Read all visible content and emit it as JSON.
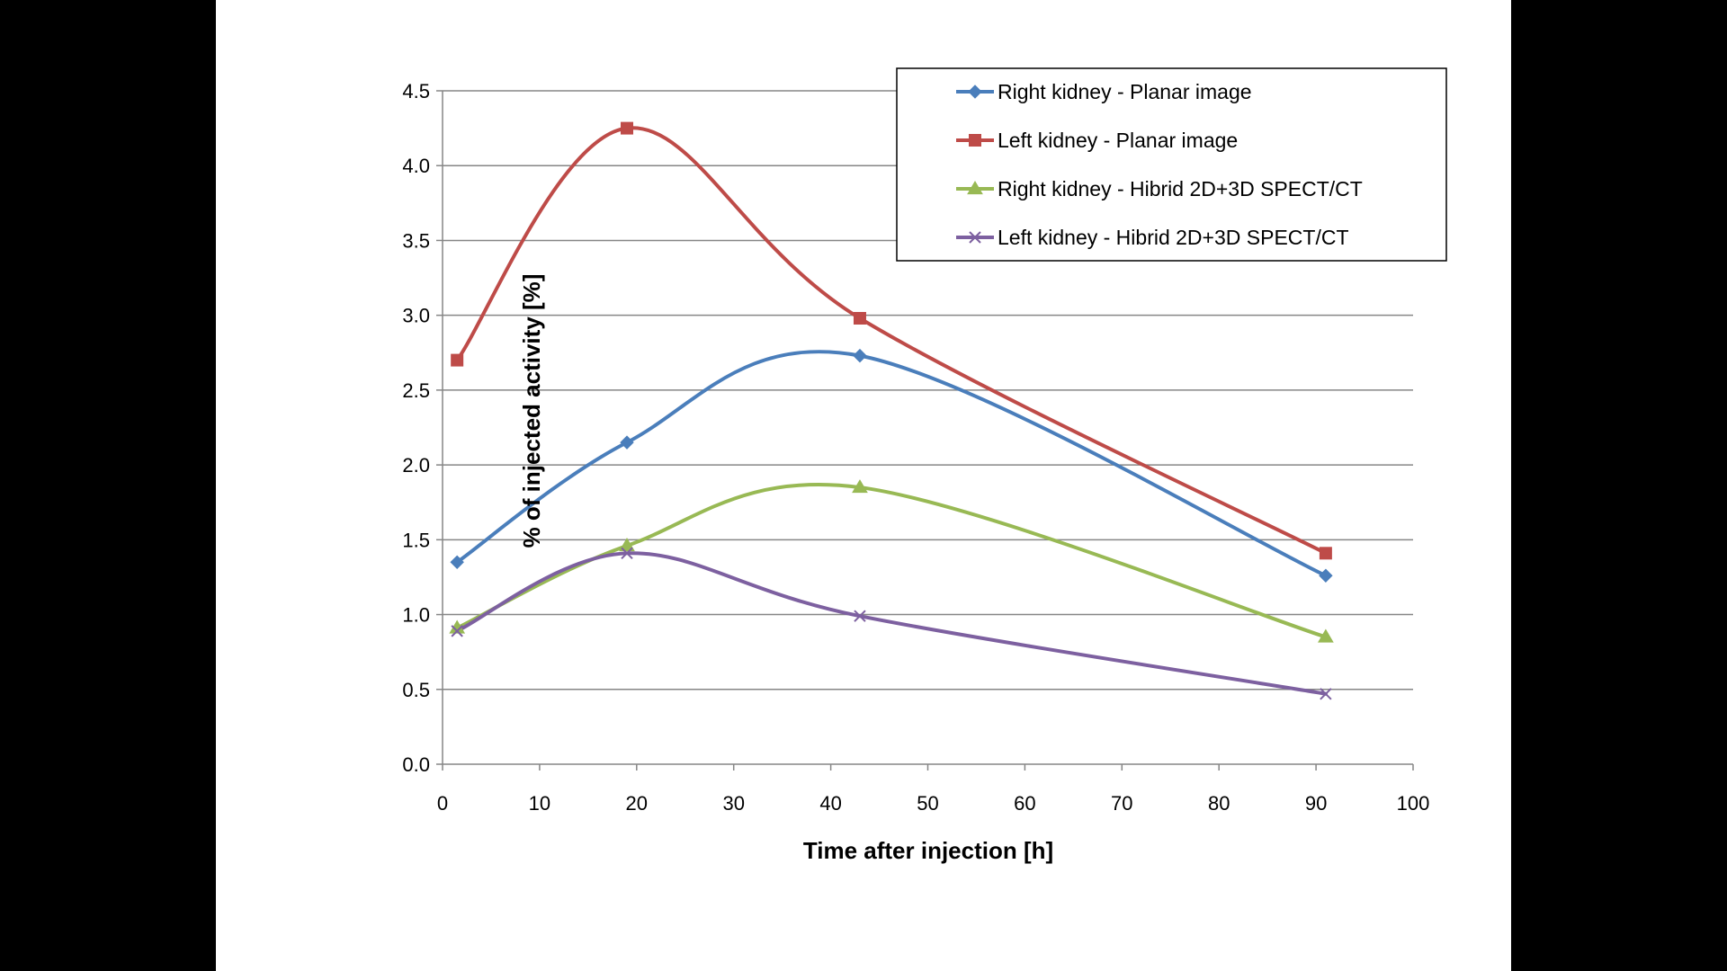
{
  "chart_data": {
    "type": "line",
    "xlabel": "Time after injection  [h]",
    "ylabel": "% of injected activity [%]",
    "xlim": [
      0,
      100
    ],
    "ylim": [
      0,
      4.5
    ],
    "xticks": [
      "0",
      "10",
      "20",
      "30",
      "40",
      "50",
      "60",
      "70",
      "80",
      "90",
      "100"
    ],
    "yticks": [
      "0.0",
      "0.5",
      "1.0",
      "1.5",
      "2.0",
      "2.5",
      "3.0",
      "3.5",
      "4.0",
      "4.5"
    ],
    "grid": true,
    "smooth": true,
    "legend_position": "top-right",
    "series": [
      {
        "name": "Right kidney - Planar image",
        "color": "#4A7EBB",
        "marker": "diamond",
        "x": [
          1.5,
          19,
          43,
          91
        ],
        "y": [
          1.35,
          2.15,
          2.73,
          1.26
        ]
      },
      {
        "name": "Left kidney    - Planar image",
        "color": "#BE4B48",
        "marker": "square",
        "x": [
          1.5,
          19,
          43,
          91
        ],
        "y": [
          2.7,
          4.25,
          2.98,
          1.41
        ]
      },
      {
        "name": "Right kidney - Hibrid 2D+3D SPECT/CT",
        "color": "#98B954",
        "marker": "triangle",
        "x": [
          1.5,
          19,
          43,
          91
        ],
        "y": [
          0.91,
          1.46,
          1.85,
          0.85
        ]
      },
      {
        "name": "Left kidney    - Hibrid 2D+3D SPECT/CT",
        "color": "#7D60A0",
        "marker": "x",
        "x": [
          1.5,
          19,
          43,
          91
        ],
        "y": [
          0.89,
          1.41,
          0.99,
          0.47
        ]
      }
    ]
  }
}
